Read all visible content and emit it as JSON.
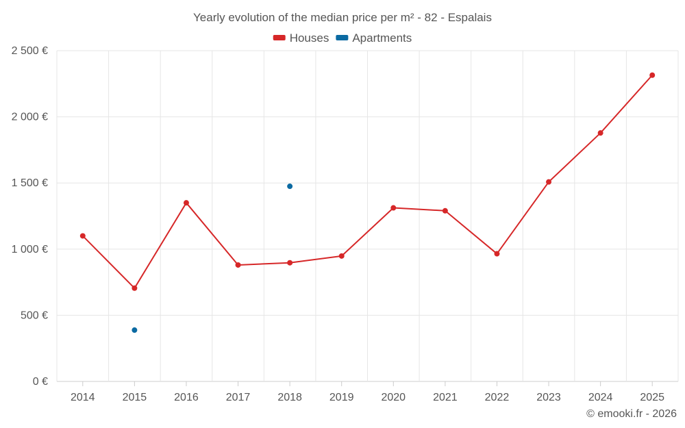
{
  "chart_data": {
    "type": "line",
    "title": "Yearly evolution of the median price per m² - 82 - Espalais",
    "categories": [
      "2014",
      "2015",
      "2016",
      "2017",
      "2018",
      "2019",
      "2020",
      "2021",
      "2022",
      "2023",
      "2024",
      "2025"
    ],
    "series": [
      {
        "name": "Houses",
        "color": "#d62728",
        "values": [
          1100,
          705,
          1350,
          880,
          897,
          948,
          1312,
          1290,
          965,
          1508,
          1878,
          2315
        ]
      },
      {
        "name": "Apartments",
        "color": "#0b6aa2",
        "values": [
          null,
          388,
          null,
          null,
          1475,
          null,
          null,
          null,
          null,
          null,
          null,
          null
        ]
      }
    ],
    "ylim": [
      0,
      2500
    ],
    "yticks": [
      0,
      500,
      1000,
      1500,
      2000,
      2500
    ],
    "ytick_labels": [
      "0 €",
      "500 €",
      "1 000 €",
      "1 500 €",
      "2 000 €",
      "2 500 €"
    ],
    "xlabel": "",
    "ylabel": "",
    "legend_position": "top-center",
    "grid": true
  },
  "credit": "© emooki.fr - 2026"
}
